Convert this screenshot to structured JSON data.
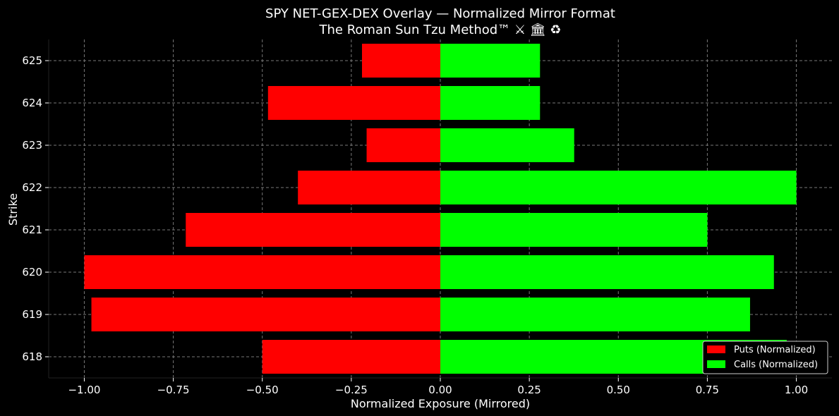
{
  "chart_data": {
    "type": "bar",
    "orientation": "horizontal",
    "title": "SPY NET-GEX-DEX Overlay — Normalized Mirror Format",
    "subtitle": "The Roman Sun Tzu Method™ ⚔ 🏛 ♻",
    "xlabel": "Normalized Exposure (Mirrored)",
    "ylabel": "Strike",
    "categories": [
      "618",
      "619",
      "620",
      "621",
      "622",
      "623",
      "624",
      "625"
    ],
    "series": [
      {
        "name": "Puts (Normalized)",
        "color": "#ff0000",
        "values": [
          -0.5,
          -0.98,
          -1.0,
          -0.715,
          -0.4,
          -0.207,
          -0.484,
          -0.22
        ]
      },
      {
        "name": "Calls (Normalized)",
        "color": "#00ff00",
        "values": [
          0.973,
          0.87,
          0.937,
          0.75,
          1.0,
          0.376,
          0.28,
          0.28
        ]
      }
    ],
    "xlim": [
      -1.1,
      1.1
    ],
    "xticks": [
      -1.0,
      -0.75,
      -0.5,
      -0.25,
      0.0,
      0.25,
      0.5,
      0.75,
      1.0
    ],
    "xtick_labels": [
      "−1.00",
      "−0.75",
      "−0.50",
      "−0.25",
      "0.00",
      "0.25",
      "0.50",
      "0.75",
      "1.00"
    ],
    "grid": true,
    "grid_color": "#777777",
    "background": "#000000",
    "legend_position": "bottom-right"
  }
}
